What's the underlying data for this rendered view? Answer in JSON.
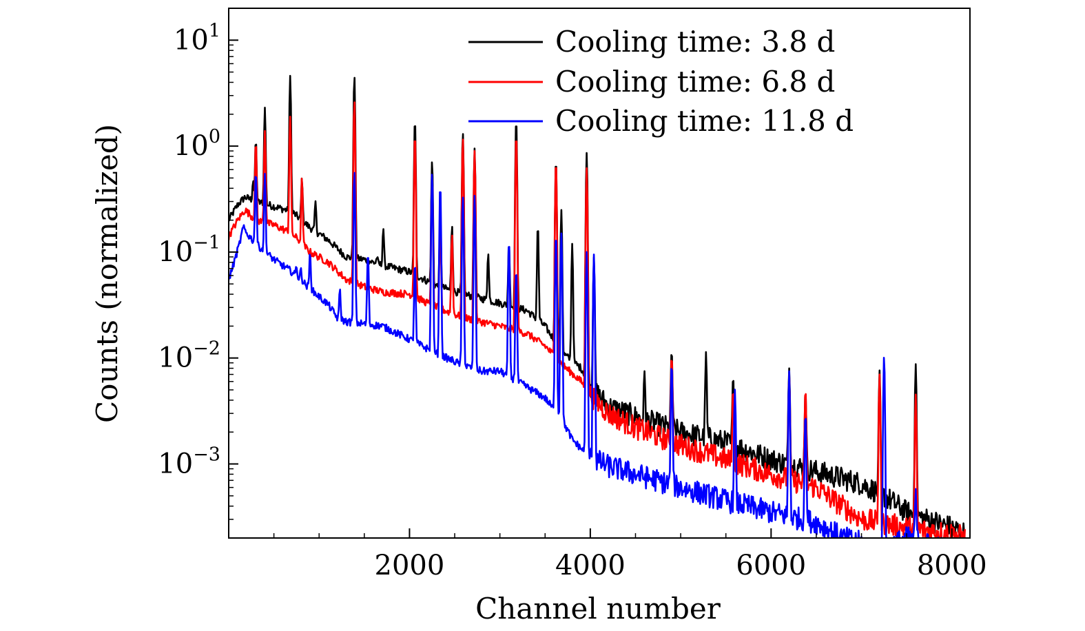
{
  "chart_data": {
    "type": "line",
    "title": "",
    "xlabel": "Channel number",
    "ylabel": "Counts (normalized)",
    "x_scale": "linear",
    "y_scale": "log",
    "xlim": [
      0,
      8200
    ],
    "ylim": [
      0.0002,
      20
    ],
    "x_ticks": [
      {
        "value": 2000,
        "label": "2000"
      },
      {
        "value": 4000,
        "label": "4000"
      },
      {
        "value": 6000,
        "label": "6000"
      },
      {
        "value": 8000,
        "label": "8000"
      }
    ],
    "y_ticks": [
      {
        "value": 10,
        "base": "10",
        "exp": "1"
      },
      {
        "value": 1,
        "base": "10",
        "exp": "0"
      },
      {
        "value": 0.1,
        "base": "10",
        "exp": "−1"
      },
      {
        "value": 0.01,
        "base": "10",
        "exp": "−2"
      },
      {
        "value": 0.001,
        "base": "10",
        "exp": "−3"
      }
    ],
    "grid": false,
    "legend_position": "top-right",
    "series": [
      {
        "name": "Cooling time: 3.8 d",
        "color": "#000000",
        "baseline": [
          [
            0,
            0.2
          ],
          [
            100,
            0.28
          ],
          [
            180,
            0.33
          ],
          [
            300,
            0.3
          ],
          [
            500,
            0.27
          ],
          [
            700,
            0.24
          ],
          [
            900,
            0.17
          ],
          [
            1100,
            0.13
          ],
          [
            1300,
            0.09
          ],
          [
            1500,
            0.085
          ],
          [
            1700,
            0.075
          ],
          [
            2000,
            0.065
          ],
          [
            2300,
            0.048
          ],
          [
            2600,
            0.04
          ],
          [
            3000,
            0.033
          ],
          [
            3300,
            0.028
          ],
          [
            3500,
            0.02
          ],
          [
            3700,
            0.011
          ],
          [
            3900,
            0.008
          ],
          [
            4000,
            0.0055
          ],
          [
            4200,
            0.0035
          ],
          [
            4500,
            0.0028
          ],
          [
            5000,
            0.002
          ],
          [
            5500,
            0.0016
          ],
          [
            6000,
            0.0011
          ],
          [
            6500,
            0.00085
          ],
          [
            7000,
            0.00065
          ],
          [
            7250,
            0.0005
          ],
          [
            7500,
            0.00035
          ],
          [
            8000,
            0.00025
          ],
          [
            8150,
            0.00022
          ]
        ],
        "peaks": [
          [
            270,
            0.48
          ],
          [
            300,
            1.15
          ],
          [
            400,
            2.3
          ],
          [
            680,
            4.6
          ],
          [
            810,
            0.5
          ],
          [
            960,
            0.3
          ],
          [
            1390,
            4.6
          ],
          [
            1640,
            0.09
          ],
          [
            1710,
            0.17
          ],
          [
            2060,
            1.8
          ],
          [
            2250,
            0.73
          ],
          [
            2340,
            0.21
          ],
          [
            2470,
            0.18
          ],
          [
            2590,
            1.35
          ],
          [
            2720,
            0.95
          ],
          [
            2870,
            0.1
          ],
          [
            3100,
            0.12
          ],
          [
            3180,
            1.8
          ],
          [
            3420,
            0.18
          ],
          [
            3620,
            0.75
          ],
          [
            3680,
            0.25
          ],
          [
            3800,
            0.12
          ],
          [
            3960,
            0.86
          ],
          [
            4040,
            0.09
          ],
          [
            4600,
            0.0072
          ],
          [
            4900,
            0.012
          ],
          [
            5280,
            0.011
          ],
          [
            5580,
            0.0065
          ],
          [
            6200,
            0.0082
          ],
          [
            6380,
            0.005
          ],
          [
            7200,
            0.0075
          ],
          [
            7600,
            0.0088
          ]
        ]
      },
      {
        "name": "Cooling time: 6.8 d",
        "color": "#ff0000",
        "baseline": [
          [
            0,
            0.14
          ],
          [
            100,
            0.2
          ],
          [
            180,
            0.25
          ],
          [
            300,
            0.2
          ],
          [
            500,
            0.18
          ],
          [
            700,
            0.15
          ],
          [
            900,
            0.1
          ],
          [
            1100,
            0.08
          ],
          [
            1300,
            0.055
          ],
          [
            1500,
            0.047
          ],
          [
            1700,
            0.042
          ],
          [
            2000,
            0.04
          ],
          [
            2300,
            0.03
          ],
          [
            2600,
            0.024
          ],
          [
            3000,
            0.02
          ],
          [
            3300,
            0.017
          ],
          [
            3500,
            0.013
          ],
          [
            3700,
            0.0085
          ],
          [
            3900,
            0.006
          ],
          [
            4000,
            0.0045
          ],
          [
            4200,
            0.003
          ],
          [
            4500,
            0.0022
          ],
          [
            5000,
            0.0015
          ],
          [
            5500,
            0.0011
          ],
          [
            6000,
            0.0008
          ],
          [
            6500,
            0.0006
          ],
          [
            6700,
            0.00045
          ],
          [
            7000,
            0.0003
          ],
          [
            7500,
            0.00025
          ],
          [
            8000,
            0.00022
          ],
          [
            8150,
            0.0002
          ]
        ],
        "peaks": [
          [
            300,
            1.1
          ],
          [
            400,
            1.4
          ],
          [
            680,
            1.9
          ],
          [
            810,
            0.5
          ],
          [
            1390,
            2.7
          ],
          [
            2060,
            1.3
          ],
          [
            2250,
            0.55
          ],
          [
            2340,
            0.2
          ],
          [
            2470,
            0.15
          ],
          [
            2590,
            1.2
          ],
          [
            2720,
            0.9
          ],
          [
            3180,
            1.3
          ],
          [
            3620,
            0.73
          ],
          [
            3960,
            0.62
          ],
          [
            4900,
            0.011
          ],
          [
            5580,
            0.005
          ],
          [
            6200,
            0.0072
          ],
          [
            6380,
            0.0052
          ],
          [
            7200,
            0.007
          ],
          [
            7600,
            0.0045
          ]
        ]
      },
      {
        "name": "Cooling time: 11.8 d",
        "color": "#0000ff",
        "baseline": [
          [
            0,
            0.055
          ],
          [
            60,
            0.08
          ],
          [
            120,
            0.12
          ],
          [
            160,
            0.17
          ],
          [
            200,
            0.15
          ],
          [
            300,
            0.12
          ],
          [
            500,
            0.085
          ],
          [
            700,
            0.065
          ],
          [
            900,
            0.045
          ],
          [
            1000,
            0.038
          ],
          [
            1100,
            0.032
          ],
          [
            1200,
            0.024
          ],
          [
            1300,
            0.022
          ],
          [
            1500,
            0.021
          ],
          [
            1700,
            0.02
          ],
          [
            2000,
            0.015
          ],
          [
            2300,
            0.011
          ],
          [
            2600,
            0.0085
          ],
          [
            2800,
            0.0075
          ],
          [
            3000,
            0.0075
          ],
          [
            3200,
            0.006
          ],
          [
            3500,
            0.0042
          ],
          [
            3700,
            0.0025
          ],
          [
            3800,
            0.0017
          ],
          [
            4000,
            0.00115
          ],
          [
            4200,
            0.00095
          ],
          [
            4500,
            0.0008
          ],
          [
            5000,
            0.0006
          ],
          [
            5500,
            0.00045
          ],
          [
            6000,
            0.00035
          ],
          [
            6500,
            0.00028
          ],
          [
            6800,
            0.0002
          ],
          [
            7000,
            0.00018
          ],
          [
            7200,
            0.00015
          ],
          [
            7500,
            0.0002
          ],
          [
            8000,
            0.00015
          ]
        ],
        "peaks": [
          [
            300,
            0.58
          ],
          [
            350,
            0.1
          ],
          [
            400,
            0.55
          ],
          [
            750,
            0.075
          ],
          [
            800,
            0.07
          ],
          [
            900,
            0.1
          ],
          [
            1230,
            0.045
          ],
          [
            1390,
            0.58
          ],
          [
            1540,
            0.1
          ],
          [
            2060,
            0.08
          ],
          [
            2250,
            0.56
          ],
          [
            2340,
            0.43
          ],
          [
            2590,
            0.34
          ],
          [
            2720,
            0.34
          ],
          [
            3100,
            0.13
          ],
          [
            3180,
            0.07
          ],
          [
            3620,
            0.15
          ],
          [
            3680,
            0.15
          ],
          [
            3960,
            0.1
          ],
          [
            4040,
            0.095
          ],
          [
            4900,
            0.009
          ],
          [
            5600,
            0.005
          ],
          [
            6200,
            0.0075
          ],
          [
            6380,
            0.003
          ],
          [
            7250,
            0.0105
          ],
          [
            7600,
            0.00055
          ]
        ]
      }
    ]
  }
}
